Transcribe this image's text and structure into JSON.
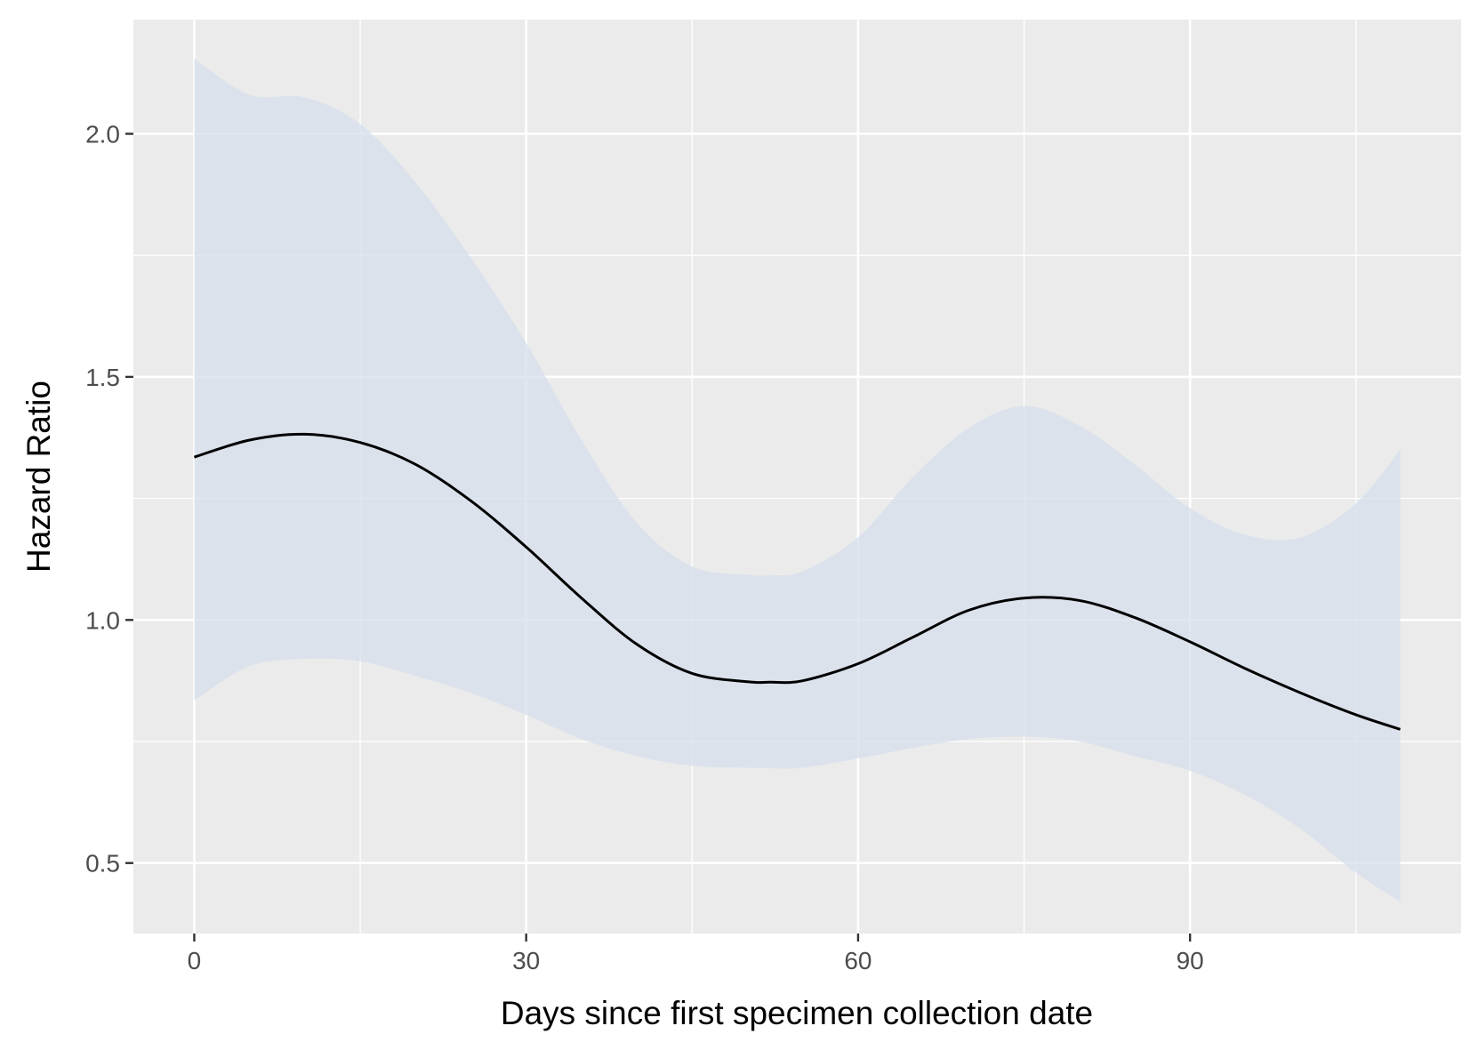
{
  "chart_data": {
    "type": "line",
    "title": "",
    "xlabel": "Days since first specimen collection date",
    "ylabel": "Hazard Ratio",
    "xlim": [
      -5.5,
      114.5
    ],
    "ylim": [
      0.355,
      2.235
    ],
    "x_ticks": [
      {
        "value": 0,
        "label": "0"
      },
      {
        "value": 30,
        "label": "30"
      },
      {
        "value": 60,
        "label": "60"
      },
      {
        "value": 90,
        "label": "90"
      }
    ],
    "y_ticks": [
      {
        "value": 0.5,
        "label": "0.5"
      },
      {
        "value": 1.0,
        "label": "1.0"
      },
      {
        "value": 1.5,
        "label": "1.5"
      },
      {
        "value": 2.0,
        "label": "2.0"
      }
    ],
    "x_minor_gridlines": [
      15,
      45,
      75,
      105
    ],
    "y_minor_gridlines": [
      0.75,
      1.25,
      1.75
    ],
    "grid": true,
    "legend": "none",
    "colors": {
      "panel_background": "#ebebeb",
      "gridline": "#ffffff",
      "line": "#000000",
      "ribbon": "#d6dfeb"
    },
    "series": [
      {
        "x": [
          0,
          5,
          10,
          15,
          20,
          25,
          30,
          35,
          40,
          45,
          50,
          52,
          55,
          60,
          65,
          70,
          75,
          80,
          85,
          90,
          95,
          100,
          105,
          109
        ],
        "y": [
          1.335,
          1.37,
          1.382,
          1.365,
          1.32,
          1.245,
          1.15,
          1.045,
          0.95,
          0.89,
          0.873,
          0.872,
          0.875,
          0.91,
          0.965,
          1.02,
          1.045,
          1.04,
          1.005,
          0.955,
          0.9,
          0.85,
          0.805,
          0.775
        ],
        "lower": [
          0.835,
          0.905,
          0.92,
          0.915,
          0.885,
          0.85,
          0.805,
          0.755,
          0.72,
          0.7,
          0.696,
          0.695,
          0.696,
          0.715,
          0.737,
          0.755,
          0.76,
          0.75,
          0.72,
          0.69,
          0.64,
          0.57,
          0.48,
          0.42
        ],
        "upper": [
          2.155,
          2.08,
          2.075,
          2.02,
          1.9,
          1.745,
          1.57,
          1.37,
          1.2,
          1.11,
          1.093,
          1.092,
          1.1,
          1.17,
          1.295,
          1.395,
          1.44,
          1.4,
          1.32,
          1.23,
          1.175,
          1.17,
          1.24,
          1.35
        ]
      }
    ]
  }
}
